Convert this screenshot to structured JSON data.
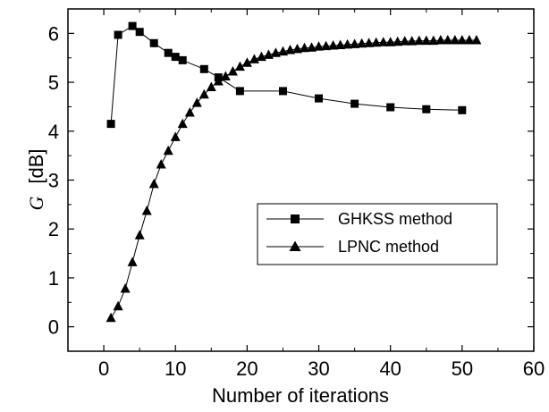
{
  "chart_data": {
    "type": "line",
    "title": "",
    "xlabel": "Number of iterations",
    "ylabel_symbol": "G",
    "ylabel_unit": "[dB]",
    "xlim": [
      -5,
      60
    ],
    "ylim": [
      -0.5,
      6.5
    ],
    "x_ticks": [
      0,
      10,
      20,
      30,
      40,
      50,
      60
    ],
    "y_ticks": [
      0,
      1,
      2,
      3,
      4,
      5,
      6
    ],
    "grid": false,
    "legend_position": "center-right",
    "series": [
      {
        "name": "GHKSS method",
        "marker": "square",
        "x": [
          1,
          2,
          4,
          5,
          7,
          9,
          10,
          11,
          14,
          16,
          19,
          25,
          30,
          35,
          40,
          45,
          50
        ],
        "y": [
          4.15,
          5.97,
          6.15,
          6.03,
          5.8,
          5.6,
          5.52,
          5.45,
          5.27,
          5.1,
          4.82,
          4.82,
          4.67,
          4.56,
          4.49,
          4.45,
          4.43
        ]
      },
      {
        "name": "LPNC method",
        "marker": "triangle",
        "x": [
          1,
          2,
          3,
          4,
          5,
          6,
          7,
          8,
          9,
          10,
          11,
          12,
          13,
          14,
          15,
          16,
          17,
          18,
          19,
          20,
          21,
          22,
          23,
          24,
          25,
          26,
          27,
          28,
          29,
          30,
          31,
          32,
          33,
          34,
          35,
          36,
          37,
          38,
          39,
          40,
          41,
          42,
          43,
          44,
          45,
          46,
          47,
          48,
          49,
          50,
          51,
          52
        ],
        "y": [
          0.18,
          0.42,
          0.78,
          1.32,
          1.87,
          2.37,
          2.92,
          3.32,
          3.6,
          3.88,
          4.15,
          4.38,
          4.58,
          4.75,
          4.9,
          5.02,
          5.12,
          5.22,
          5.32,
          5.4,
          5.47,
          5.52,
          5.56,
          5.6,
          5.63,
          5.66,
          5.68,
          5.7,
          5.71,
          5.73,
          5.74,
          5.75,
          5.76,
          5.77,
          5.78,
          5.79,
          5.8,
          5.81,
          5.82,
          5.82,
          5.83,
          5.84,
          5.84,
          5.85,
          5.85,
          5.85,
          5.86,
          5.86,
          5.86,
          5.86,
          5.86,
          5.86
        ]
      }
    ]
  }
}
